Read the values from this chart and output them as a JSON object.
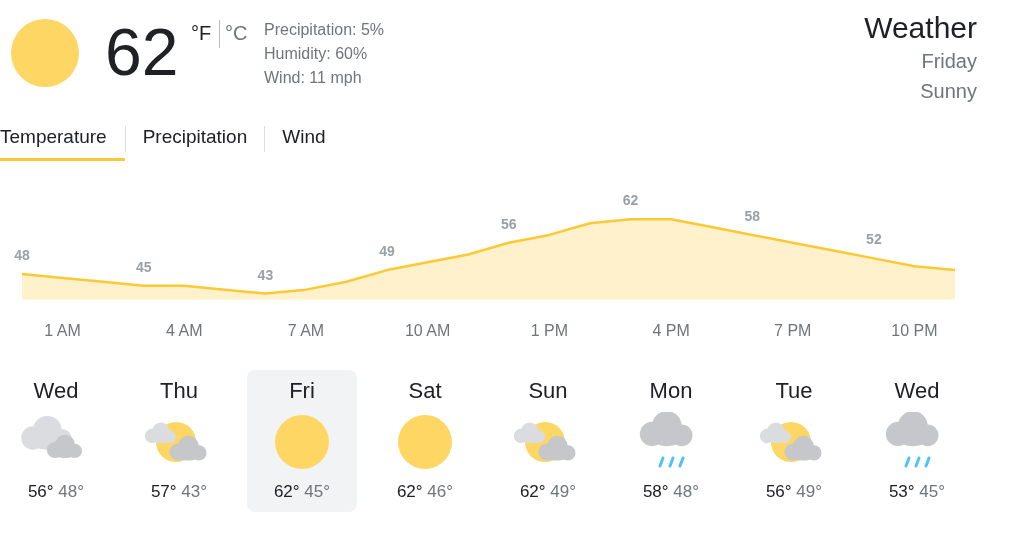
{
  "chart_data": {
    "type": "area",
    "title": "Weather",
    "subtitle": "Friday",
    "annotations": [
      "62",
      "°F",
      "°C",
      "Precipitation: 5%",
      "Humidity: 60%",
      "Wind: 11 mph",
      "Sunny",
      "Temperature",
      "Precipitation",
      "Wind",
      "Wed",
      "56°",
      "48°",
      "Thu",
      "57°",
      "43°",
      "Fri",
      "62°",
      "45°",
      "Sat",
      "62°",
      "46°",
      "Sun",
      "62°",
      "49°",
      "Mon",
      "58°",
      "48°",
      "Tue",
      "56°",
      "49°",
      "Wed",
      "53°",
      "45°"
    ],
    "categories": [
      null,
      "1 AM",
      null,
      null,
      "4 AM",
      null,
      null,
      "7 AM",
      null,
      null,
      "10 AM",
      null,
      null,
      "1 PM",
      null,
      null,
      "4 PM",
      null,
      null,
      "7 PM",
      null,
      null,
      "10 PM",
      null
    ],
    "series": [
      {
        "color": "#fcc934",
        "values": [
          48,
          47,
          46,
          45,
          45,
          44,
          43,
          44,
          46,
          49,
          51,
          53,
          56,
          58,
          61,
          62,
          62,
          60,
          58,
          56,
          54,
          52,
          50,
          49
        ],
        "value_labels": [
          "48",
          null,
          null,
          "45",
          null,
          null,
          "43",
          null,
          null,
          "49",
          null,
          null,
          "56",
          null,
          null,
          "62",
          null,
          null,
          "58",
          null,
          null,
          "52",
          null,
          null
        ]
      }
    ],
    "grid": false,
    "legend": false,
    "marker": "none"
  }
}
